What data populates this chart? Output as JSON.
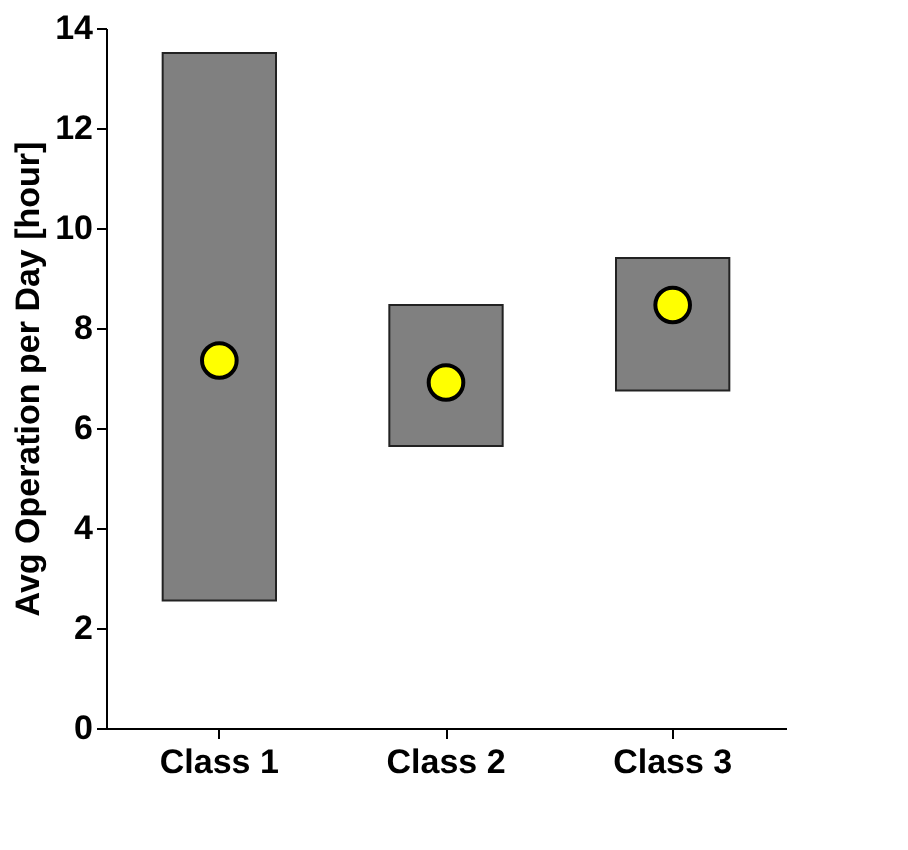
{
  "chart_data": {
    "type": "bar",
    "ylabel": "Avg Operation per Day [hour]",
    "categories": [
      "Class 1",
      "Class 2",
      "Class 3"
    ],
    "series": [
      {
        "color": "#808080",
        "base": [
          2.55,
          5.64,
          6.75
        ],
        "values": [
          10.95,
          2.82,
          2.65
        ]
      },
      {
        "type": "scatter",
        "color": "#ffff00",
        "x": [
          "Class 1",
          "Class 2",
          "Class 3"
        ],
        "values": [
          7.35,
          6.91,
          8.46
        ]
      }
    ],
    "ylim": [
      0,
      14
    ],
    "yticks": [
      0,
      2,
      4,
      6,
      8,
      10,
      12,
      14
    ],
    "grid": false,
    "marker": "circle"
  }
}
